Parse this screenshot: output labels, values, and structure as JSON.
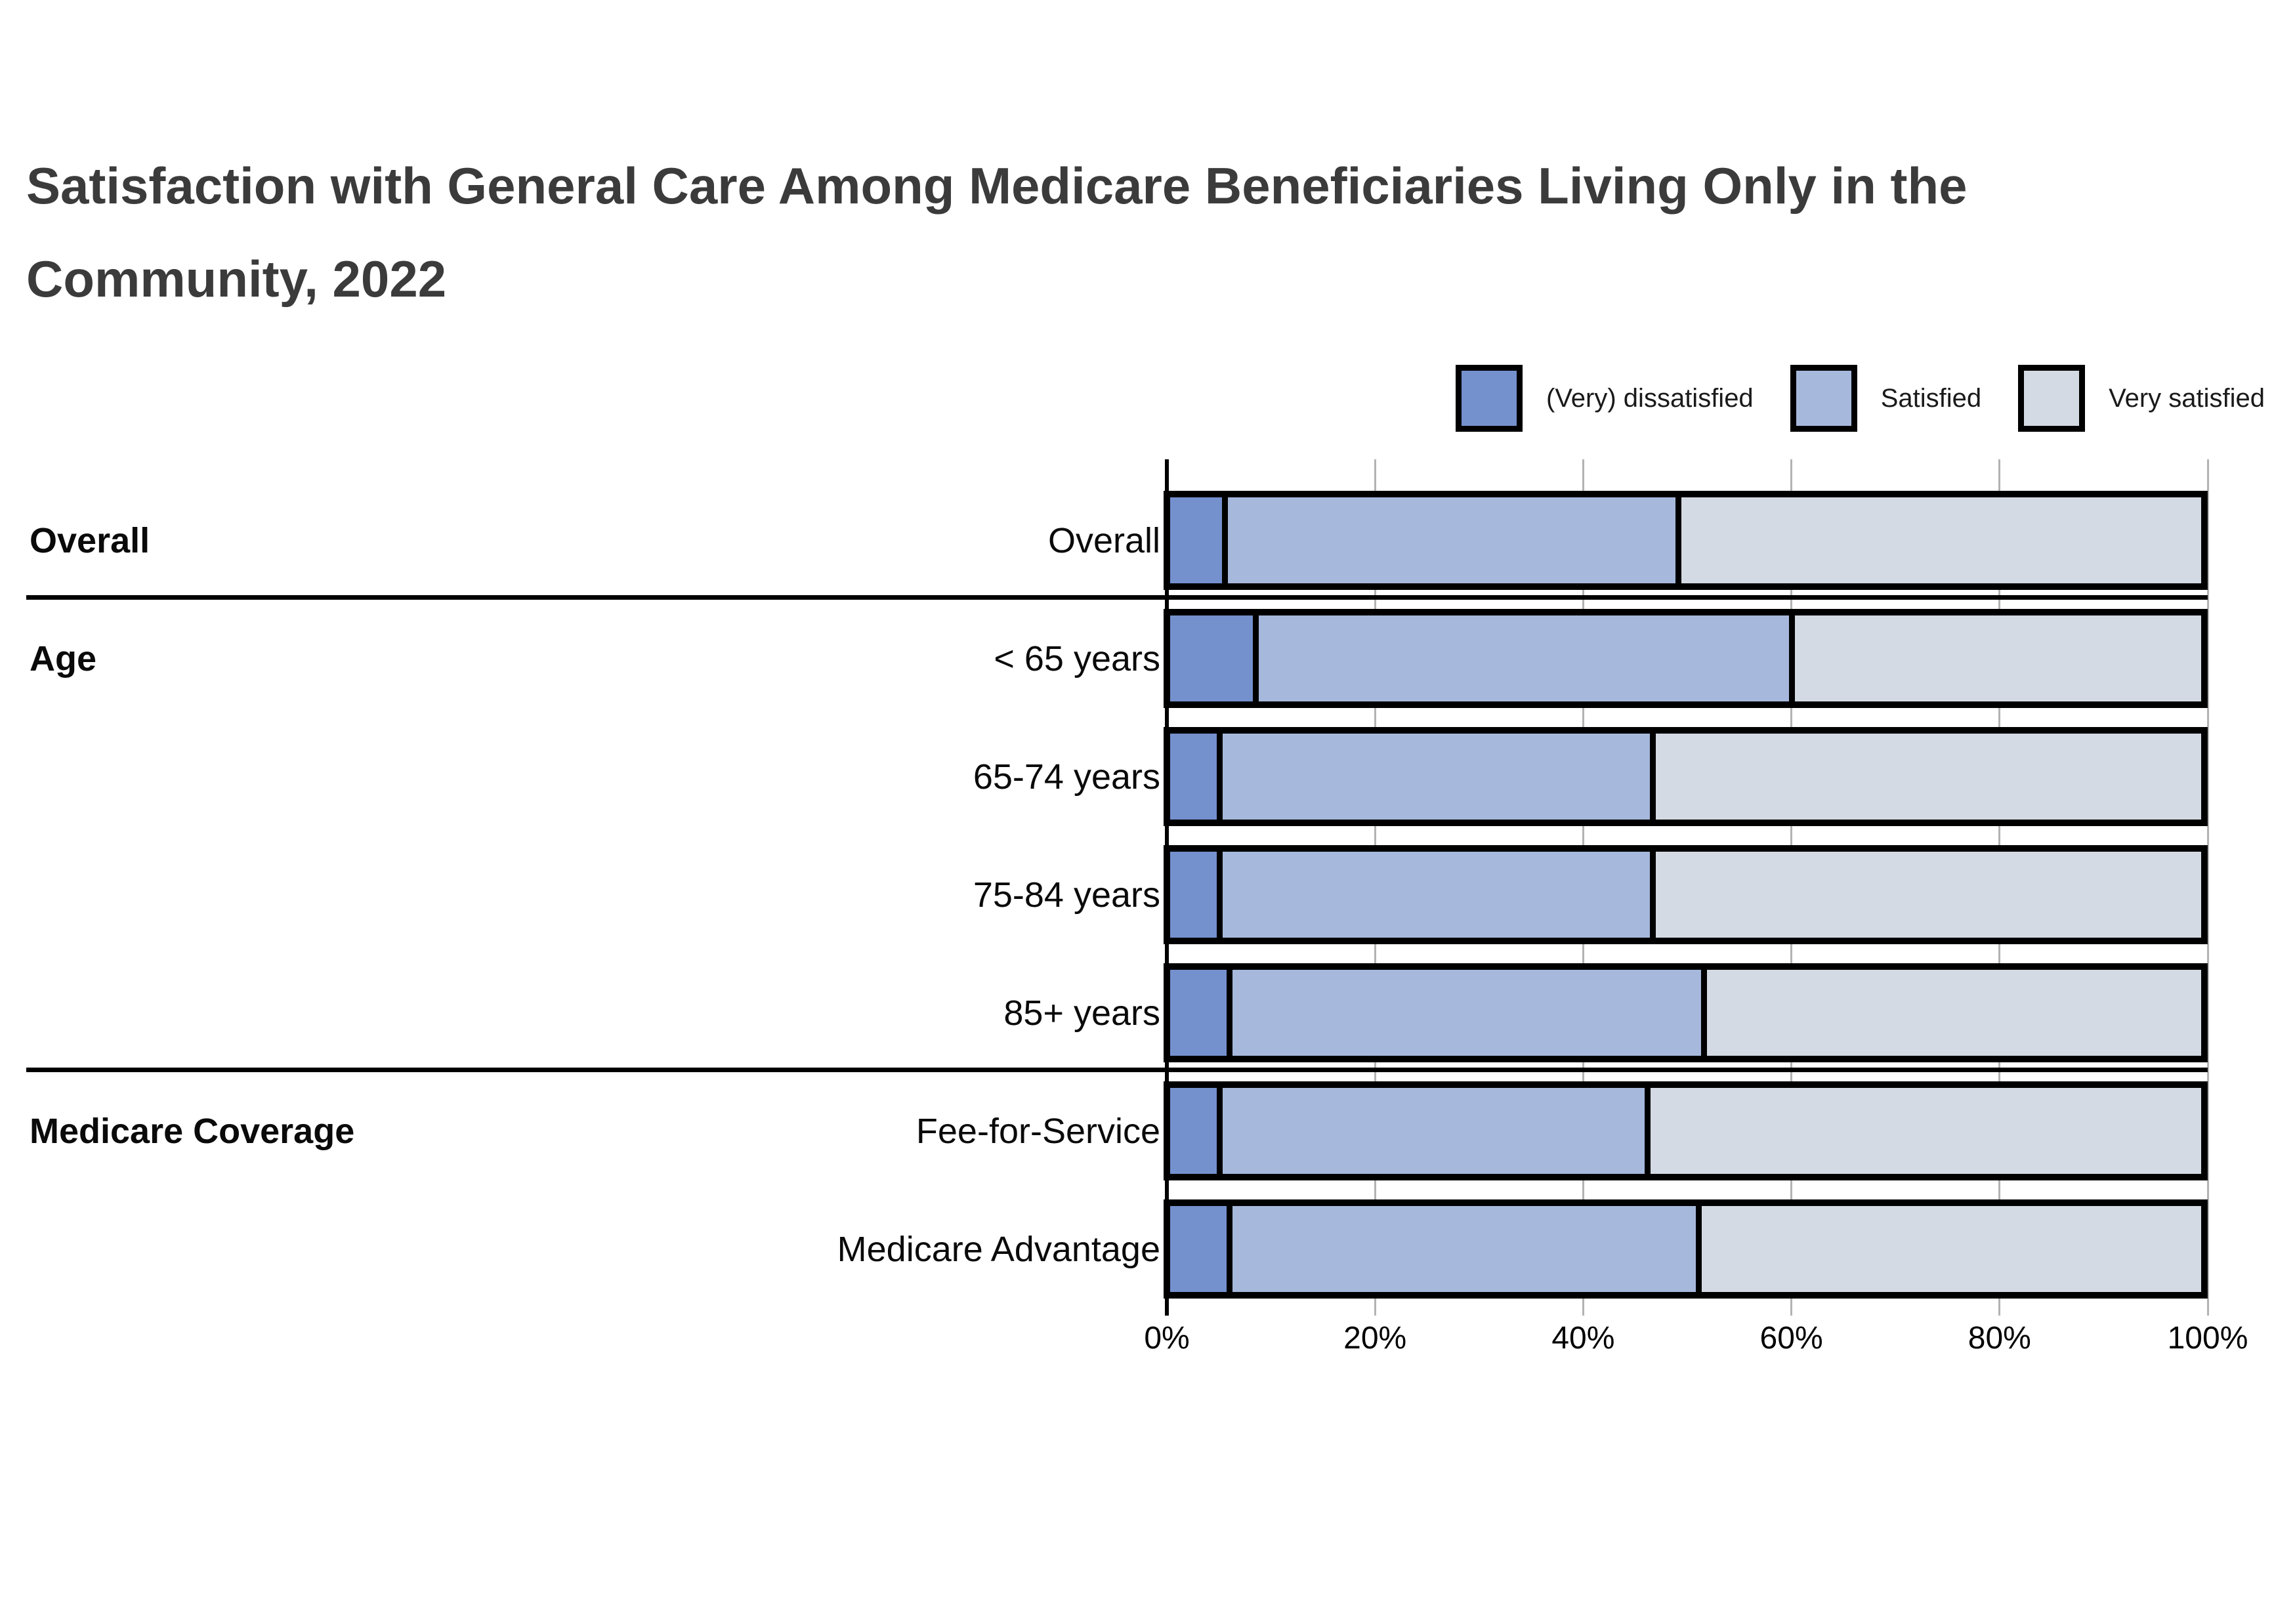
{
  "title": {
    "line1": "Satisfaction with General Care Among Medicare Beneficiaries Living Only in the",
    "line2": "Community, 2022"
  },
  "legend": [
    {
      "label": "(Very) dissatisfied",
      "color": "#7491ce",
      "icon": "legend-swatch-dissatisfied"
    },
    {
      "label": "Satisfied",
      "color": "#a6b8dc",
      "icon": "legend-swatch-satisfied"
    },
    {
      "label": "Very satisfied",
      "color": "#d4dae3",
      "icon": "legend-swatch-very-satisfied"
    }
  ],
  "axis": {
    "tick_labels": [
      "0%",
      "20%",
      "40%",
      "60%",
      "80%",
      "100%"
    ]
  },
  "groups": [
    {
      "label": "Overall",
      "rows": [
        "Overall"
      ]
    },
    {
      "label": "Age",
      "rows": [
        "< 65 years",
        "65-74 years",
        "75-84 years",
        "85+ years"
      ]
    },
    {
      "label": "Medicare Coverage",
      "rows": [
        "Fee-for-Service",
        "Medicare Advantage"
      ]
    }
  ],
  "chart_data": {
    "type": "bar",
    "stacked": true,
    "orientation": "horizontal",
    "title": "Satisfaction with General Care Among Medicare Beneficiaries Living Only in the Community, 2022",
    "categories": [
      "Overall",
      "< 65 years",
      "65-74 years",
      "75-84 years",
      "85+ years",
      "Fee-for-Service",
      "Medicare Advantage"
    ],
    "category_groups": [
      "Overall",
      "Age",
      "Age",
      "Age",
      "Age",
      "Medicare Coverage",
      "Medicare Coverage"
    ],
    "series": [
      {
        "name": "(Very) dissatisfied",
        "color": "#7491ce",
        "values": [
          5.0,
          8.0,
          4.5,
          4.5,
          5.5,
          4.5,
          5.5
        ]
      },
      {
        "name": "Satisfied",
        "color": "#a6b8dc",
        "values": [
          44.0,
          52.0,
          42.0,
          42.0,
          46.0,
          41.5,
          45.5
        ]
      },
      {
        "name": "Very satisfied",
        "color": "#d4dae3",
        "values": [
          51.0,
          40.0,
          53.5,
          53.5,
          48.5,
          54.0,
          49.0
        ]
      }
    ],
    "xlim": [
      0,
      100
    ],
    "x_tick_labels": [
      "0%",
      "20%",
      "40%",
      "60%",
      "80%",
      "100%"
    ],
    "grid": true,
    "gridline_color": "#b3b3b3",
    "bar_border_color": "#000000",
    "legend_position": "top-right"
  }
}
